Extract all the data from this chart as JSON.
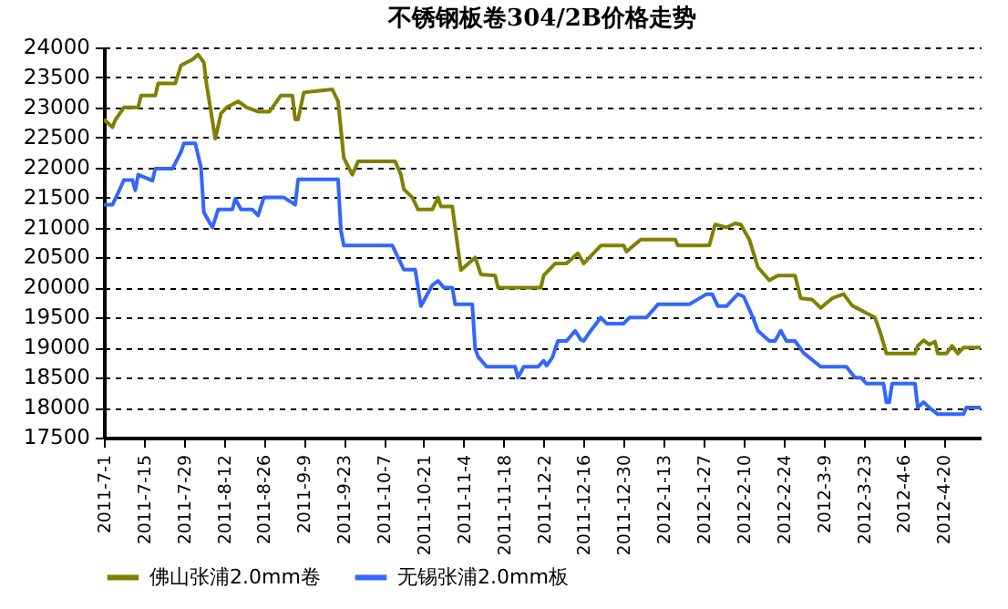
{
  "chart_data": {
    "type": "line",
    "title": "不锈钢板卷304/2B价格走势",
    "xlim": [
      "2011-07-01",
      "2012-05-03"
    ],
    "xticks": [
      {
        "value": "2011-07-01",
        "label": "2011-7-1"
      },
      {
        "value": "2011-07-15",
        "label": "2011-7-15"
      },
      {
        "value": "2011-07-29",
        "label": "2011-7-29"
      },
      {
        "value": "2011-08-12",
        "label": "2011-8-12"
      },
      {
        "value": "2011-08-26",
        "label": "2011-8-26"
      },
      {
        "value": "2011-09-09",
        "label": "2011-9-9"
      },
      {
        "value": "2011-09-23",
        "label": "2011-9-23"
      },
      {
        "value": "2011-10-07",
        "label": "2011-10-7"
      },
      {
        "value": "2011-10-21",
        "label": "2011-10-21"
      },
      {
        "value": "2011-11-04",
        "label": "2011-11-4"
      },
      {
        "value": "2011-11-18",
        "label": "2011-11-18"
      },
      {
        "value": "2011-12-02",
        "label": "2011-12-2"
      },
      {
        "value": "2011-12-16",
        "label": "2011-12-16"
      },
      {
        "value": "2011-12-30",
        "label": "2011-12-30"
      },
      {
        "value": "2012-01-13",
        "label": "2012-1-13"
      },
      {
        "value": "2012-01-27",
        "label": "2012-1-27"
      },
      {
        "value": "2012-02-10",
        "label": "2012-2-10"
      },
      {
        "value": "2012-02-24",
        "label": "2012-2-24"
      },
      {
        "value": "2012-03-09",
        "label": "2012-3-9"
      },
      {
        "value": "2012-03-23",
        "label": "2012-3-23"
      },
      {
        "value": "2012-04-06",
        "label": "2012-4-6"
      },
      {
        "value": "2012-04-20",
        "label": "2012-4-20"
      }
    ],
    "ylim": [
      17500,
      24000
    ],
    "yticks": [
      17500,
      18000,
      18500,
      19000,
      19500,
      20000,
      20500,
      21000,
      21500,
      22000,
      22500,
      23000,
      23500,
      24000
    ],
    "grid": "y",
    "legend": "bottom",
    "marker": "none",
    "line_style": "solid",
    "series": [
      {
        "name": "佛山张浦2.0mm卷",
        "color": "#808000",
        "x": [
          "2011-07-01",
          "2011-07-04",
          "2011-07-05",
          "2011-07-08",
          "2011-07-13",
          "2011-07-14",
          "2011-07-19",
          "2011-07-20",
          "2011-07-26",
          "2011-07-28",
          "2011-08-01",
          "2011-08-03",
          "2011-08-05",
          "2011-08-06",
          "2011-08-09",
          "2011-08-11",
          "2011-08-13",
          "2011-08-17",
          "2011-08-20",
          "2011-08-24",
          "2011-08-28",
          "2011-08-29",
          "2011-09-01",
          "2011-09-05",
          "2011-09-06",
          "2011-09-07",
          "2011-09-09",
          "2011-09-19",
          "2011-09-21",
          "2011-09-23",
          "2011-09-26",
          "2011-09-28",
          "2011-10-11",
          "2011-10-13",
          "2011-10-14",
          "2011-10-17",
          "2011-10-19",
          "2011-10-24",
          "2011-10-26",
          "2011-10-27",
          "2011-10-31",
          "2011-11-03",
          "2011-11-08",
          "2011-11-10",
          "2011-11-15",
          "2011-11-16",
          "2011-12-01",
          "2011-12-02",
          "2011-12-06",
          "2011-12-10",
          "2011-12-14",
          "2011-12-16",
          "2011-12-18",
          "2011-12-22",
          "2011-12-30",
          "2011-12-31",
          "2012-01-05",
          "2012-01-17",
          "2012-01-18",
          "2012-01-29",
          "2012-01-31",
          "2012-02-04",
          "2012-02-07",
          "2012-02-09",
          "2012-02-12",
          "2012-02-15",
          "2012-02-19",
          "2012-02-22",
          "2012-02-28",
          "2012-03-01",
          "2012-03-05",
          "2012-03-08",
          "2012-03-12",
          "2012-03-16",
          "2012-03-19",
          "2012-03-23",
          "2012-03-27",
          "2012-03-29",
          "2012-03-31",
          "2012-04-10",
          "2012-04-11",
          "2012-04-13",
          "2012-04-15",
          "2012-04-17",
          "2012-04-18",
          "2012-04-21",
          "2012-04-23",
          "2012-04-25",
          "2012-04-27",
          "2012-05-03"
        ],
        "values": [
          22800,
          22670,
          22790,
          23000,
          23000,
          23200,
          23200,
          23400,
          23400,
          23700,
          23800,
          23880,
          23750,
          23370,
          22480,
          22900,
          23000,
          23100,
          23000,
          22930,
          22930,
          23000,
          23200,
          23200,
          22800,
          22800,
          23250,
          23300,
          23100,
          22160,
          21880,
          22100,
          22100,
          21880,
          21640,
          21500,
          21300,
          21300,
          21500,
          21350,
          21350,
          20290,
          20500,
          20220,
          20200,
          20000,
          20000,
          20200,
          20400,
          20400,
          20570,
          20400,
          20500,
          20700,
          20700,
          20600,
          20800,
          20800,
          20700,
          20700,
          21050,
          21000,
          21070,
          21050,
          20800,
          20340,
          20120,
          20200,
          20200,
          19820,
          19800,
          19660,
          19820,
          19890,
          19700,
          19600,
          19500,
          19230,
          18900,
          18900,
          19030,
          19120,
          19050,
          19100,
          18900,
          18900,
          19030,
          18900,
          19000,
          19000
        ]
      },
      {
        "name": "无锡张浦2.0mm板",
        "color": "#3366ff",
        "x": [
          "2011-07-01",
          "2011-07-04",
          "2011-07-06",
          "2011-07-08",
          "2011-07-11",
          "2011-07-12",
          "2011-07-13",
          "2011-07-18",
          "2011-07-19",
          "2011-07-25",
          "2011-07-28",
          "2011-07-29",
          "2011-08-02",
          "2011-08-04",
          "2011-08-05",
          "2011-08-08",
          "2011-08-10",
          "2011-08-15",
          "2011-08-16",
          "2011-08-18",
          "2011-08-22",
          "2011-08-24",
          "2011-08-26",
          "2011-09-02",
          "2011-09-06",
          "2011-09-07",
          "2011-09-21",
          "2011-09-22",
          "2011-09-23",
          "2011-10-10",
          "2011-10-12",
          "2011-10-14",
          "2011-10-18",
          "2011-10-20",
          "2011-10-24",
          "2011-10-26",
          "2011-10-28",
          "2011-10-31",
          "2011-11-01",
          "2011-11-07",
          "2011-11-08",
          "2011-11-09",
          "2011-11-12",
          "2011-11-22",
          "2011-11-23",
          "2011-11-25",
          "2011-11-30",
          "2011-12-02",
          "2011-12-03",
          "2011-12-05",
          "2011-12-07",
          "2011-12-10",
          "2011-12-13",
          "2011-12-15",
          "2011-12-16",
          "2011-12-18",
          "2011-12-22",
          "2011-12-24",
          "2011-12-30",
          "2012-01-01",
          "2012-01-07",
          "2012-01-11",
          "2012-01-22",
          "2012-01-28",
          "2012-01-30",
          "2012-02-01",
          "2012-02-04",
          "2012-02-08",
          "2012-02-10",
          "2012-02-13",
          "2012-02-15",
          "2012-02-19",
          "2012-02-21",
          "2012-02-23",
          "2012-02-25",
          "2012-02-28",
          "2012-03-02",
          "2012-03-08",
          "2012-03-17",
          "2012-03-20",
          "2012-03-22",
          "2012-03-24",
          "2012-03-30",
          "2012-03-31",
          "2012-04-01",
          "2012-04-02",
          "2012-04-10",
          "2012-04-11",
          "2012-04-13",
          "2012-04-15",
          "2012-04-18",
          "2012-04-27",
          "2012-04-28",
          "2012-05-03"
        ],
        "values": [
          21380,
          21380,
          21580,
          21790,
          21790,
          21620,
          21880,
          21780,
          21980,
          21980,
          22260,
          22400,
          22400,
          22000,
          21250,
          21000,
          21300,
          21300,
          21480,
          21300,
          21300,
          21200,
          21500,
          21500,
          21380,
          21800,
          21800,
          20950,
          20700,
          20700,
          20500,
          20300,
          20300,
          19690,
          20040,
          20110,
          20000,
          20000,
          19720,
          19720,
          18980,
          18850,
          18680,
          18680,
          18500,
          18680,
          18680,
          18780,
          18700,
          18830,
          19110,
          19110,
          19280,
          19130,
          19110,
          19250,
          19500,
          19400,
          19400,
          19500,
          19500,
          19720,
          19720,
          19890,
          19890,
          19690,
          19690,
          19890,
          19850,
          19530,
          19280,
          19110,
          19110,
          19280,
          19110,
          19110,
          18910,
          18680,
          18680,
          18500,
          18500,
          18400,
          18400,
          18090,
          18090,
          18400,
          18400,
          18000,
          18090,
          18000,
          17890,
          17890,
          18000,
          18000
        ]
      }
    ]
  }
}
